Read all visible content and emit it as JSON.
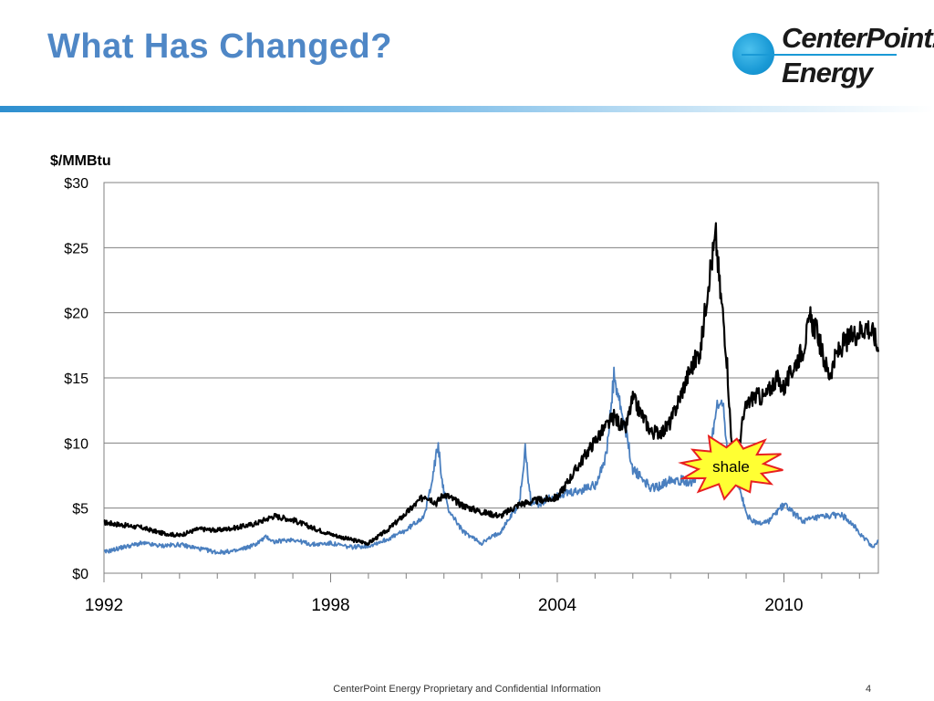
{
  "slide": {
    "title": "What Has Changed?",
    "logo_line1": "CenterPoint.",
    "logo_line2": "Energy",
    "footer": "CenterPoint Energy Proprietary and Confidential Information",
    "page_number": "4"
  },
  "chart_data": {
    "type": "line",
    "ylabel": "$/MMBtu",
    "ylim": [
      0,
      30
    ],
    "yticks": [
      0,
      5,
      10,
      15,
      20,
      25,
      30
    ],
    "ytick_labels": [
      "$0",
      "$5",
      "$10",
      "$15",
      "$20",
      "$25",
      "$30"
    ],
    "xlim": [
      1992.0,
      2012.5
    ],
    "xticks": [
      1992,
      1998,
      2004,
      2010
    ],
    "xtick_labels": [
      "1992",
      "1998",
      "2004",
      "2010"
    ],
    "grid": "horizontal",
    "annotation": {
      "text": "shale",
      "x": 2008.6,
      "y": 8.2,
      "fill": "#ffff33",
      "stroke": "#e82020"
    },
    "colors": {
      "series_black": "#000000",
      "series_blue": "#4a7fbf",
      "grid": "#808080"
    },
    "series": [
      {
        "color": "#000000",
        "x": [
          1992.0,
          1992.5,
          1993.0,
          1993.5,
          1994.0,
          1994.5,
          1995.0,
          1995.5,
          1996.0,
          1996.5,
          1997.0,
          1997.5,
          1998.0,
          1998.5,
          1999.0,
          1999.5,
          2000.0,
          2000.5,
          2000.8,
          2001.0,
          2001.5,
          2002.0,
          2002.5,
          2003.0,
          2003.5,
          2004.0,
          2004.5,
          2005.0,
          2005.5,
          2005.8,
          2006.0,
          2006.5,
          2006.8,
          2007.0,
          2007.5,
          2007.8,
          2008.0,
          2008.2,
          2008.3,
          2008.4,
          2008.5,
          2008.6,
          2008.7,
          2008.8,
          2008.9,
          2009.0,
          2009.2,
          2009.5,
          2009.8,
          2010.0,
          2010.3,
          2010.5,
          2010.7,
          2010.9,
          2011.0,
          2011.2,
          2011.4,
          2011.6,
          2011.8,
          2012.0,
          2012.2,
          2012.4,
          2012.5
        ],
        "y": [
          3.9,
          3.7,
          3.5,
          3.1,
          2.9,
          3.4,
          3.3,
          3.5,
          3.8,
          4.4,
          4.1,
          3.5,
          3.0,
          2.6,
          2.3,
          3.3,
          4.6,
          6.0,
          5.4,
          6.1,
          5.2,
          4.7,
          4.4,
          5.3,
          5.6,
          5.8,
          8.0,
          10.2,
          12.0,
          11.0,
          13.4,
          10.8,
          10.9,
          11.6,
          15.5,
          17.2,
          22.5,
          25.8,
          22.0,
          19.5,
          16.0,
          10.5,
          8.3,
          9.5,
          11.5,
          12.8,
          13.6,
          13.5,
          15.0,
          14.2,
          16.1,
          17.2,
          19.5,
          18.4,
          17.0,
          15.2,
          16.8,
          17.7,
          18.2,
          18.6,
          19.0,
          18.2,
          17.0
        ]
      },
      {
        "color": "#4a7fbf",
        "x": [
          1992.0,
          1992.5,
          1993.0,
          1993.5,
          1994.0,
          1994.5,
          1995.0,
          1995.5,
          1996.0,
          1996.3,
          1996.5,
          1997.0,
          1997.5,
          1998.0,
          1998.5,
          1999.0,
          1999.5,
          2000.0,
          2000.5,
          2000.85,
          2000.95,
          2001.1,
          2001.5,
          2002.0,
          2002.5,
          2003.0,
          2003.15,
          2003.3,
          2003.5,
          2004.0,
          2004.5,
          2005.0,
          2005.3,
          2005.5,
          2005.8,
          2006.0,
          2006.5,
          2006.8,
          2007.0,
          2007.5,
          2007.8,
          2008.0,
          2008.2,
          2008.4,
          2008.5,
          2008.7,
          2008.9,
          2009.0,
          2009.3,
          2009.6,
          2010.0,
          2010.5,
          2011.0,
          2011.5,
          2011.8,
          2012.0,
          2012.2,
          2012.35,
          2012.5
        ],
        "y": [
          1.6,
          2.0,
          2.3,
          2.1,
          2.2,
          1.9,
          1.6,
          1.7,
          2.2,
          2.8,
          2.4,
          2.6,
          2.2,
          2.3,
          2.0,
          2.1,
          2.6,
          3.3,
          4.5,
          9.8,
          7.0,
          5.0,
          3.2,
          2.3,
          3.2,
          5.4,
          9.5,
          5.5,
          5.3,
          6.0,
          6.2,
          6.8,
          9.0,
          15.0,
          11.0,
          8.0,
          6.5,
          6.8,
          7.3,
          7.0,
          7.5,
          8.5,
          12.5,
          13.2,
          9.0,
          7.3,
          5.8,
          4.5,
          3.8,
          4.0,
          5.3,
          4.0,
          4.3,
          4.5,
          3.9,
          3.0,
          2.5,
          2.0,
          2.5
        ]
      }
    ]
  }
}
